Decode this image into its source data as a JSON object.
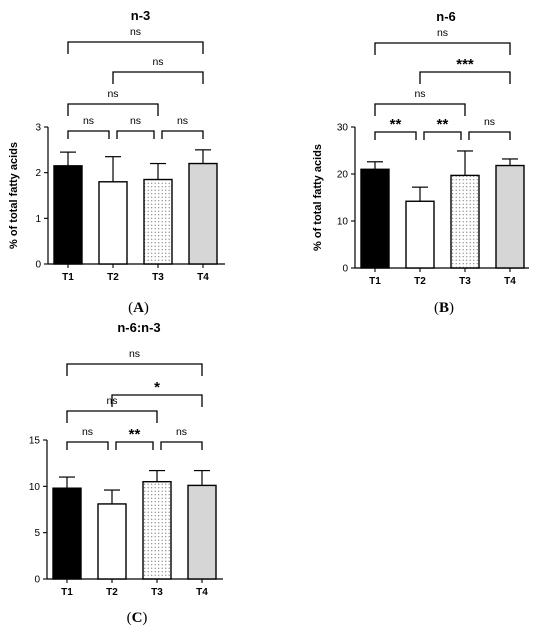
{
  "chart_data": [
    {
      "type": "bar",
      "panel_label": "A",
      "title": "n-3",
      "ylabel": "% of total fatty acids",
      "xlabel": "",
      "categories": [
        "T1",
        "T2",
        "T3",
        "T4"
      ],
      "values": [
        2.15,
        1.8,
        1.85,
        2.2
      ],
      "errors": [
        0.3,
        0.55,
        0.35,
        0.3
      ],
      "ylim": [
        0,
        3
      ],
      "yticks": [
        "0",
        "1",
        "2",
        "3"
      ],
      "fill_styles": [
        "black",
        "white",
        "dotted",
        "lightgray"
      ],
      "comparisons": [
        {
          "from": "T1",
          "to": "T2",
          "label": "ns"
        },
        {
          "from": "T2",
          "to": "T3",
          "label": "ns"
        },
        {
          "from": "T3",
          "to": "T4",
          "label": "ns"
        },
        {
          "from": "T1",
          "to": "T3",
          "label": "ns"
        },
        {
          "from": "T2",
          "to": "T4",
          "label": "ns"
        },
        {
          "from": "T1",
          "to": "T4",
          "label": "ns"
        }
      ]
    },
    {
      "type": "bar",
      "panel_label": "B",
      "title": "n-6",
      "ylabel": "% of total fatty acids",
      "xlabel": "",
      "categories": [
        "T1",
        "T2",
        "T3",
        "T4"
      ],
      "values": [
        21.0,
        14.2,
        19.7,
        21.8
      ],
      "errors": [
        1.6,
        3.0,
        5.2,
        1.4
      ],
      "ylim": [
        0,
        30
      ],
      "yticks": [
        "0",
        "10",
        "20",
        "30"
      ],
      "fill_styles": [
        "black",
        "white",
        "dotted",
        "lightgray"
      ],
      "comparisons": [
        {
          "from": "T1",
          "to": "T2",
          "label": "**"
        },
        {
          "from": "T2",
          "to": "T3",
          "label": "**"
        },
        {
          "from": "T3",
          "to": "T4",
          "label": "ns"
        },
        {
          "from": "T1",
          "to": "T3",
          "label": "ns"
        },
        {
          "from": "T2",
          "to": "T4",
          "label": "***"
        },
        {
          "from": "T1",
          "to": "T4",
          "label": "ns"
        }
      ]
    },
    {
      "type": "bar",
      "panel_label": "C",
      "title": "n-6:n-3",
      "ylabel": "",
      "xlabel": "",
      "categories": [
        "T1",
        "T2",
        "T3",
        "T4"
      ],
      "values": [
        9.8,
        8.1,
        10.5,
        10.1
      ],
      "errors": [
        1.2,
        1.5,
        1.2,
        1.6
      ],
      "ylim": [
        0,
        15
      ],
      "yticks": [
        "0",
        "5",
        "10",
        "15"
      ],
      "fill_styles": [
        "black",
        "white",
        "dotted",
        "lightgray"
      ],
      "comparisons": [
        {
          "from": "T1",
          "to": "T2",
          "label": "ns"
        },
        {
          "from": "T2",
          "to": "T3",
          "label": "**"
        },
        {
          "from": "T3",
          "to": "T4",
          "label": "ns"
        },
        {
          "from": "T1",
          "to": "T3",
          "label": "ns"
        },
        {
          "from": "T2",
          "to": "T4",
          "label": "*"
        },
        {
          "from": "T1",
          "to": "T4",
          "label": "ns"
        }
      ]
    }
  ],
  "colors": {
    "black": "#000000",
    "white": "#ffffff",
    "lightgray": "#d6d6d6",
    "dot": "#6e6e6e"
  }
}
